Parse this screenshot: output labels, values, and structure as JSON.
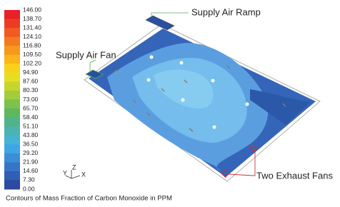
{
  "legend": {
    "labels": [
      "146.00",
      "138.70",
      "131.40",
      "124.10",
      "116.80",
      "109.50",
      "102.20",
      "94.90",
      "87.60",
      "80.30",
      "73.00",
      "65.70",
      "58.40",
      "51.10",
      "43.80",
      "36.50",
      "29.20",
      "21.90",
      "14.60",
      "7.30",
      "0.00"
    ]
  },
  "callouts": {
    "ramp": "Supply Air Ramp",
    "fan": "Supply Air Fan",
    "exhaust": "Two Exhaust Fans"
  },
  "axes": {
    "y": "Y",
    "z": "Z",
    "x": "X"
  },
  "caption": "Contours of Mass Fraction of Carbon Monoxide in PPM"
}
